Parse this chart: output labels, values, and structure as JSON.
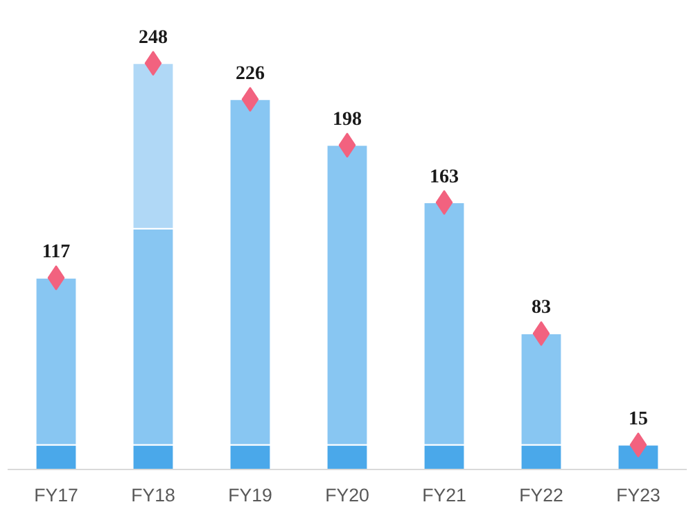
{
  "chart_data": {
    "type": "bar",
    "stacked": true,
    "categories": [
      "FY17",
      "FY18",
      "FY19",
      "FY20",
      "FY21",
      "FY22",
      "FY23"
    ],
    "tick_labels": "x",
    "series": [
      {
        "color": "#4aa8ea",
        "values": [
          15,
          15,
          15,
          15,
          15,
          15,
          15
        ]
      },
      {
        "color": "#88c6f2",
        "values": [
          102,
          132,
          211,
          183,
          148,
          68,
          0
        ]
      },
      {
        "color": "#b0d8f6",
        "values": [
          0,
          101,
          0,
          0,
          0,
          0,
          0
        ]
      },
      {
        "type": "scatter",
        "marker": "diamond",
        "color": "#f2627f",
        "data_labels": true,
        "x": [
          "FY17",
          "FY18",
          "FY19",
          "FY20",
          "FY21",
          "FY22",
          "FY23"
        ],
        "values": [
          117,
          248,
          226,
          198,
          163,
          83,
          15
        ]
      }
    ]
  }
}
